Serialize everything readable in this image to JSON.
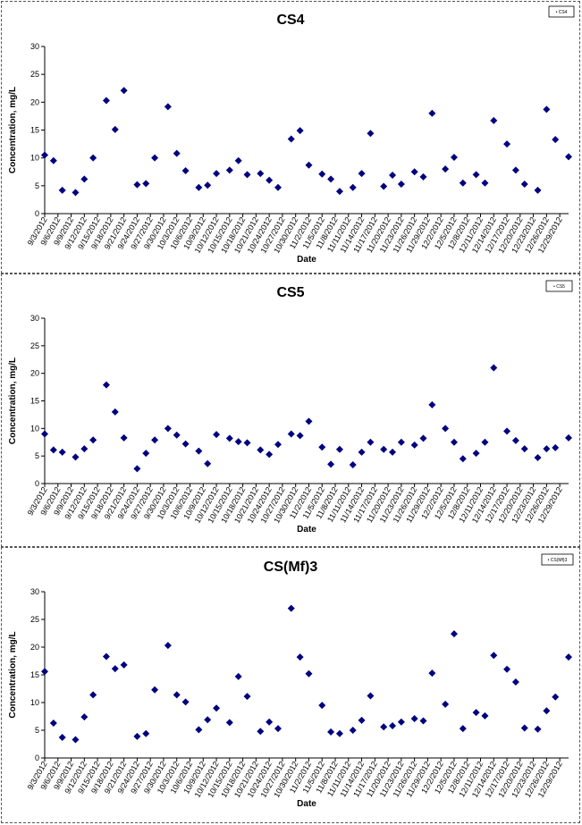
{
  "chart_data": [
    {
      "type": "scatter",
      "title": "CS4",
      "xlabel": "Date",
      "ylabel": "Concentration, mg/L",
      "ylim": [
        0,
        30
      ],
      "yticks": [
        0,
        5,
        10,
        15,
        20,
        25,
        30
      ],
      "legend": {
        "position": "top-right",
        "label": "• CS4"
      },
      "marker_color": "#00007f",
      "x_tick_labels": [
        "9/3/2012",
        "9/6/2012",
        "9/9/2012",
        "9/12/2012",
        "9/15/2012",
        "9/18/2012",
        "9/21/2012",
        "9/24/2012",
        "9/27/2012",
        "9/30/2012",
        "10/3/2012",
        "10/6/2012",
        "10/9/2012",
        "10/12/2012",
        "10/15/2012",
        "10/18/2012",
        "10/21/2012",
        "10/24/2012",
        "10/27/2012",
        "10/30/2012",
        "11/2/2012",
        "11/5/2012",
        "11/8/2012",
        "11/11/2012",
        "11/14/2012",
        "11/17/2012",
        "11/20/2012",
        "11/23/2012",
        "11/26/2012",
        "11/29/2012",
        "12/2/2012",
        "12/5/2012",
        "12/8/2012",
        "12/11/2012",
        "12/14/2012",
        "12/17/2012",
        "12/20/2012",
        "12/23/2012",
        "12/26/2012",
        "12/29/2012"
      ],
      "x_range": [
        "9/3/2012",
        "12/31/2012"
      ],
      "points": [
        {
          "x": "9/3/2012",
          "y": 10.5
        },
        {
          "x": "9/5/2012",
          "y": 9.5
        },
        {
          "x": "9/7/2012",
          "y": 4.2
        },
        {
          "x": "9/10/2012",
          "y": 3.8
        },
        {
          "x": "9/12/2012",
          "y": 6.2
        },
        {
          "x": "9/14/2012",
          "y": 10.0
        },
        {
          "x": "9/17/2012",
          "y": 20.3
        },
        {
          "x": "9/19/2012",
          "y": 15.1
        },
        {
          "x": "9/21/2012",
          "y": 22.1
        },
        {
          "x": "9/24/2012",
          "y": 5.2
        },
        {
          "x": "9/26/2012",
          "y": 5.4
        },
        {
          "x": "9/28/2012",
          "y": 10.0
        },
        {
          "x": "10/1/2012",
          "y": 19.2
        },
        {
          "x": "10/3/2012",
          "y": 10.8
        },
        {
          "x": "10/5/2012",
          "y": 7.7
        },
        {
          "x": "10/8/2012",
          "y": 4.7
        },
        {
          "x": "10/10/2012",
          "y": 5.1
        },
        {
          "x": "10/12/2012",
          "y": 7.2
        },
        {
          "x": "10/15/2012",
          "y": 7.8
        },
        {
          "x": "10/17/2012",
          "y": 9.5
        },
        {
          "x": "10/19/2012",
          "y": 7.0
        },
        {
          "x": "10/22/2012",
          "y": 7.2
        },
        {
          "x": "10/24/2012",
          "y": 6.0
        },
        {
          "x": "10/26/2012",
          "y": 4.7
        },
        {
          "x": "10/29/2012",
          "y": 13.4
        },
        {
          "x": "10/31/2012",
          "y": 14.9
        },
        {
          "x": "11/2/2012",
          "y": 8.7
        },
        {
          "x": "11/5/2012",
          "y": 7.1
        },
        {
          "x": "11/7/2012",
          "y": 6.2
        },
        {
          "x": "11/9/2012",
          "y": 4.0
        },
        {
          "x": "11/12/2012",
          "y": 4.7
        },
        {
          "x": "11/14/2012",
          "y": 7.2
        },
        {
          "x": "11/16/2012",
          "y": 14.4
        },
        {
          "x": "11/19/2012",
          "y": 4.9
        },
        {
          "x": "11/21/2012",
          "y": 6.9
        },
        {
          "x": "11/23/2012",
          "y": 5.3
        },
        {
          "x": "11/26/2012",
          "y": 7.5
        },
        {
          "x": "11/28/2012",
          "y": 6.6
        },
        {
          "x": "11/30/2012",
          "y": 18.0
        },
        {
          "x": "12/3/2012",
          "y": 8.0
        },
        {
          "x": "12/5/2012",
          "y": 10.1
        },
        {
          "x": "12/7/2012",
          "y": 5.5
        },
        {
          "x": "12/10/2012",
          "y": 7.0
        },
        {
          "x": "12/12/2012",
          "y": 5.5
        },
        {
          "x": "12/14/2012",
          "y": 16.7
        },
        {
          "x": "12/17/2012",
          "y": 12.5
        },
        {
          "x": "12/19/2012",
          "y": 7.8
        },
        {
          "x": "12/21/2012",
          "y": 5.3
        },
        {
          "x": "12/24/2012",
          "y": 4.2
        },
        {
          "x": "12/26/2012",
          "y": 18.7
        },
        {
          "x": "12/28/2012",
          "y": 13.3
        },
        {
          "x": "12/31/2012",
          "y": 10.2
        }
      ]
    },
    {
      "type": "scatter",
      "title": "CS5",
      "xlabel": "Date",
      "ylabel": "Concentration, mg/L",
      "ylim": [
        0,
        30
      ],
      "yticks": [
        0,
        5,
        10,
        15,
        20,
        25,
        30
      ],
      "legend": {
        "position": "top-right",
        "label": "• CS5"
      },
      "marker_color": "#00007f",
      "x_tick_labels": [
        "9/3/2012",
        "9/6/2012",
        "9/9/2012",
        "9/12/2012",
        "9/15/2012",
        "9/18/2012",
        "9/21/2012",
        "9/24/2012",
        "9/27/2012",
        "9/30/2012",
        "10/3/2012",
        "10/6/2012",
        "10/9/2012",
        "10/12/2012",
        "10/15/2012",
        "10/18/2012",
        "10/21/2012",
        "10/24/2012",
        "10/27/2012",
        "10/30/2012",
        "11/2/2012",
        "11/5/2012",
        "11/8/2012",
        "11/11/2012",
        "11/14/2012",
        "11/17/2012",
        "11/20/2012",
        "11/23/2012",
        "11/26/2012",
        "11/29/2012",
        "12/2/2012",
        "12/5/2012",
        "12/8/2012",
        "12/11/2012",
        "12/14/2012",
        "12/17/2012",
        "12/20/2012",
        "12/23/2012",
        "12/26/2012",
        "12/29/2012"
      ],
      "x_range": [
        "9/3/2012",
        "12/31/2012"
      ],
      "points": [
        {
          "x": "9/3/2012",
          "y": 9.0
        },
        {
          "x": "9/5/2012",
          "y": 6.1
        },
        {
          "x": "9/7/2012",
          "y": 5.7
        },
        {
          "x": "9/10/2012",
          "y": 4.8
        },
        {
          "x": "9/12/2012",
          "y": 6.3
        },
        {
          "x": "9/14/2012",
          "y": 7.9
        },
        {
          "x": "9/17/2012",
          "y": 17.9
        },
        {
          "x": "9/19/2012",
          "y": 13.0
        },
        {
          "x": "9/21/2012",
          "y": 8.3
        },
        {
          "x": "9/24/2012",
          "y": 2.7
        },
        {
          "x": "9/26/2012",
          "y": 5.5
        },
        {
          "x": "9/28/2012",
          "y": 7.9
        },
        {
          "x": "10/1/2012",
          "y": 10.0
        },
        {
          "x": "10/3/2012",
          "y": 8.8
        },
        {
          "x": "10/5/2012",
          "y": 7.2
        },
        {
          "x": "10/8/2012",
          "y": 5.9
        },
        {
          "x": "10/10/2012",
          "y": 3.6
        },
        {
          "x": "10/12/2012",
          "y": 8.9
        },
        {
          "x": "10/15/2012",
          "y": 8.2
        },
        {
          "x": "10/17/2012",
          "y": 7.6
        },
        {
          "x": "10/19/2012",
          "y": 7.4
        },
        {
          "x": "10/22/2012",
          "y": 6.1
        },
        {
          "x": "10/24/2012",
          "y": 5.3
        },
        {
          "x": "10/26/2012",
          "y": 7.1
        },
        {
          "x": "10/29/2012",
          "y": 9.0
        },
        {
          "x": "10/31/2012",
          "y": 8.7
        },
        {
          "x": "11/2/2012",
          "y": 11.3
        },
        {
          "x": "11/5/2012",
          "y": 6.6
        },
        {
          "x": "11/7/2012",
          "y": 3.5
        },
        {
          "x": "11/9/2012",
          "y": 6.2
        },
        {
          "x": "11/12/2012",
          "y": 3.4
        },
        {
          "x": "11/14/2012",
          "y": 5.7
        },
        {
          "x": "11/16/2012",
          "y": 7.5
        },
        {
          "x": "11/19/2012",
          "y": 6.2
        },
        {
          "x": "11/21/2012",
          "y": 5.7
        },
        {
          "x": "11/23/2012",
          "y": 7.5
        },
        {
          "x": "11/26/2012",
          "y": 7.0
        },
        {
          "x": "11/28/2012",
          "y": 8.2
        },
        {
          "x": "11/30/2012",
          "y": 14.3
        },
        {
          "x": "12/3/2012",
          "y": 10.0
        },
        {
          "x": "12/5/2012",
          "y": 7.5
        },
        {
          "x": "12/7/2012",
          "y": 4.5
        },
        {
          "x": "12/10/2012",
          "y": 5.5
        },
        {
          "x": "12/12/2012",
          "y": 7.5
        },
        {
          "x": "12/14/2012",
          "y": 21.0
        },
        {
          "x": "12/17/2012",
          "y": 9.5
        },
        {
          "x": "12/19/2012",
          "y": 7.8
        },
        {
          "x": "12/21/2012",
          "y": 6.3
        },
        {
          "x": "12/24/2012",
          "y": 4.7
        },
        {
          "x": "12/26/2012",
          "y": 6.3
        },
        {
          "x": "12/28/2012",
          "y": 6.5
        },
        {
          "x": "12/31/2012",
          "y": 8.3
        }
      ]
    },
    {
      "type": "scatter",
      "title": "CS(Mf)3",
      "xlabel": "Date",
      "ylabel": "Concentration, mg/L",
      "ylim": [
        0,
        30
      ],
      "yticks": [
        0,
        5,
        10,
        15,
        20,
        25,
        30
      ],
      "legend": {
        "position": "top-right",
        "label": "• CS(Mf)3"
      },
      "marker_color": "#00007f",
      "x_tick_labels": [
        "9/3/2012",
        "9/6/2012",
        "9/9/2012",
        "9/12/2012",
        "9/15/2012",
        "9/18/2012",
        "9/21/2012",
        "9/24/2012",
        "9/27/2012",
        "9/30/2012",
        "10/3/2012",
        "10/6/2012",
        "10/9/2012",
        "10/12/2012",
        "10/15/2012",
        "10/18/2012",
        "10/21/2012",
        "10/24/2012",
        "10/27/2012",
        "10/30/2012",
        "11/2/2012",
        "11/5/2012",
        "11/8/2012",
        "11/11/2012",
        "11/14/2012",
        "11/17/2012",
        "11/20/2012",
        "11/23/2012",
        "11/26/2012",
        "11/29/2012",
        "12/2/2012",
        "12/5/2012",
        "12/8/2012",
        "12/11/2012",
        "12/14/2012",
        "12/17/2012",
        "12/20/2012",
        "12/23/2012",
        "12/26/2012",
        "12/29/2012"
      ],
      "x_range": [
        "9/3/2012",
        "12/31/2012"
      ],
      "points": [
        {
          "x": "9/3/2012",
          "y": 15.6
        },
        {
          "x": "9/5/2012",
          "y": 6.3
        },
        {
          "x": "9/7/2012",
          "y": 3.7
        },
        {
          "x": "9/10/2012",
          "y": 3.3
        },
        {
          "x": "9/12/2012",
          "y": 7.4
        },
        {
          "x": "9/14/2012",
          "y": 11.4
        },
        {
          "x": "9/17/2012",
          "y": 18.3
        },
        {
          "x": "9/19/2012",
          "y": 16.1
        },
        {
          "x": "9/21/2012",
          "y": 16.8
        },
        {
          "x": "9/24/2012",
          "y": 3.9
        },
        {
          "x": "9/26/2012",
          "y": 4.4
        },
        {
          "x": "9/28/2012",
          "y": 12.3
        },
        {
          "x": "10/1/2012",
          "y": 20.3
        },
        {
          "x": "10/3/2012",
          "y": 11.4
        },
        {
          "x": "10/5/2012",
          "y": 10.1
        },
        {
          "x": "10/8/2012",
          "y": 5.1
        },
        {
          "x": "10/10/2012",
          "y": 6.9
        },
        {
          "x": "10/12/2012",
          "y": 9.0
        },
        {
          "x": "10/15/2012",
          "y": 6.4
        },
        {
          "x": "10/17/2012",
          "y": 14.7
        },
        {
          "x": "10/19/2012",
          "y": 11.1
        },
        {
          "x": "10/22/2012",
          "y": 4.8
        },
        {
          "x": "10/24/2012",
          "y": 6.5
        },
        {
          "x": "10/26/2012",
          "y": 5.3
        },
        {
          "x": "10/29/2012",
          "y": 27.0
        },
        {
          "x": "10/31/2012",
          "y": 18.2
        },
        {
          "x": "11/2/2012",
          "y": 15.2
        },
        {
          "x": "11/5/2012",
          "y": 9.5
        },
        {
          "x": "11/7/2012",
          "y": 4.7
        },
        {
          "x": "11/9/2012",
          "y": 4.4
        },
        {
          "x": "11/12/2012",
          "y": 5.0
        },
        {
          "x": "11/14/2012",
          "y": 6.8
        },
        {
          "x": "11/16/2012",
          "y": 11.2
        },
        {
          "x": "11/19/2012",
          "y": 5.6
        },
        {
          "x": "11/21/2012",
          "y": 5.8
        },
        {
          "x": "11/23/2012",
          "y": 6.5
        },
        {
          "x": "11/26/2012",
          "y": 7.1
        },
        {
          "x": "11/28/2012",
          "y": 6.7
        },
        {
          "x": "11/30/2012",
          "y": 15.3
        },
        {
          "x": "12/3/2012",
          "y": 9.7
        },
        {
          "x": "12/5/2012",
          "y": 22.4
        },
        {
          "x": "12/7/2012",
          "y": 5.3
        },
        {
          "x": "12/10/2012",
          "y": 8.2
        },
        {
          "x": "12/12/2012",
          "y": 7.6
        },
        {
          "x": "12/14/2012",
          "y": 18.5
        },
        {
          "x": "12/17/2012",
          "y": 16.0
        },
        {
          "x": "12/19/2012",
          "y": 13.7
        },
        {
          "x": "12/21/2012",
          "y": 5.4
        },
        {
          "x": "12/24/2012",
          "y": 5.2
        },
        {
          "x": "12/26/2012",
          "y": 8.5
        },
        {
          "x": "12/28/2012",
          "y": 11.0
        },
        {
          "x": "12/31/2012",
          "y": 18.2
        }
      ]
    }
  ]
}
